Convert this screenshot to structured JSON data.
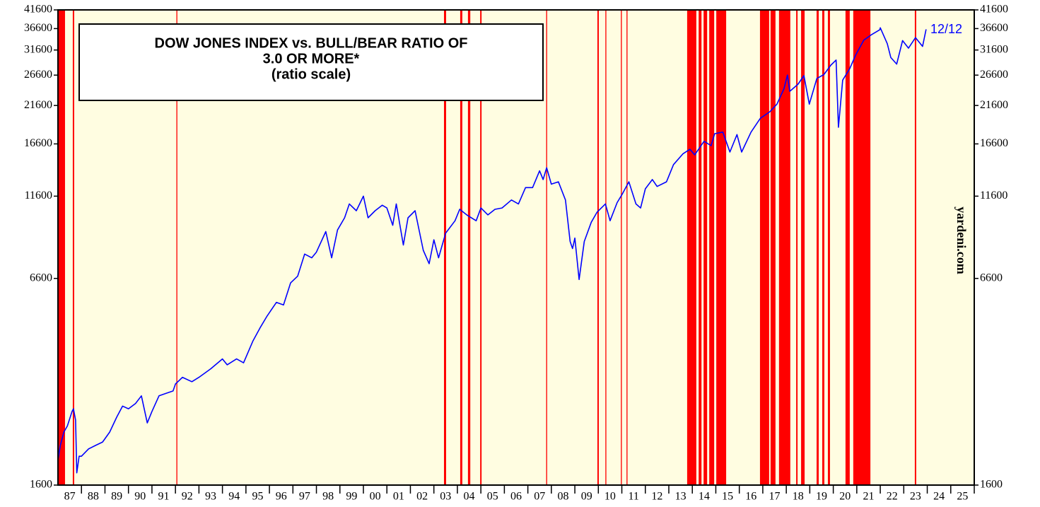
{
  "chart_data": {
    "type": "line",
    "title": [
      "DOW JONES INDEX vs. BULL/BEAR RATIO OF",
      "3.0 OR MORE*",
      "(ratio scale)"
    ],
    "end_label": "12/12",
    "source": "yardeni.com",
    "log_scale": true,
    "color": "#0000ff",
    "band_color": "#ff0000",
    "background": "#fffde1",
    "xlim": [
      1987,
      2026
    ],
    "ylim": [
      1600,
      41600
    ],
    "yticks": [
      1600,
      6600,
      11600,
      16600,
      21600,
      26600,
      31600,
      36600,
      41600
    ],
    "xticks": [
      {
        "value": 1987.5,
        "label": "87"
      },
      {
        "value": 1988.5,
        "label": "88"
      },
      {
        "value": 1989.5,
        "label": "89"
      },
      {
        "value": 1990.5,
        "label": "90"
      },
      {
        "value": 1991.5,
        "label": "91"
      },
      {
        "value": 1992.5,
        "label": "92"
      },
      {
        "value": 1993.5,
        "label": "93"
      },
      {
        "value": 1994.5,
        "label": "94"
      },
      {
        "value": 1995.5,
        "label": "95"
      },
      {
        "value": 1996.5,
        "label": "96"
      },
      {
        "value": 1997.5,
        "label": "97"
      },
      {
        "value": 1998.5,
        "label": "98"
      },
      {
        "value": 1999.5,
        "label": "99"
      },
      {
        "value": 2000.5,
        "label": "00"
      },
      {
        "value": 2001.5,
        "label": "01"
      },
      {
        "value": 2002.5,
        "label": "02"
      },
      {
        "value": 2003.5,
        "label": "03"
      },
      {
        "value": 2004.5,
        "label": "04"
      },
      {
        "value": 2005.5,
        "label": "05"
      },
      {
        "value": 2006.5,
        "label": "06"
      },
      {
        "value": 2007.5,
        "label": "07"
      },
      {
        "value": 2008.5,
        "label": "08"
      },
      {
        "value": 2009.5,
        "label": "09"
      },
      {
        "value": 2010.5,
        "label": "10"
      },
      {
        "value": 2011.5,
        "label": "11"
      },
      {
        "value": 2012.5,
        "label": "12"
      },
      {
        "value": 2013.5,
        "label": "13"
      },
      {
        "value": 2014.5,
        "label": "14"
      },
      {
        "value": 2015.5,
        "label": "15"
      },
      {
        "value": 2016.5,
        "label": "16"
      },
      {
        "value": 2017.5,
        "label": "17"
      },
      {
        "value": 2018.5,
        "label": "18"
      },
      {
        "value": 2019.5,
        "label": "19"
      },
      {
        "value": 2020.5,
        "label": "20"
      },
      {
        "value": 2021.5,
        "label": "21"
      },
      {
        "value": 2022.5,
        "label": "22"
      },
      {
        "value": 2023.5,
        "label": "23"
      },
      {
        "value": 2024.5,
        "label": "24"
      },
      {
        "value": 2025.5,
        "label": "25"
      }
    ],
    "shaded_periods": [
      [
        1987.0,
        1987.3
      ],
      [
        1987.63,
        1987.69
      ],
      [
        1992.04,
        1992.08
      ],
      [
        2003.43,
        2003.52
      ],
      [
        2004.12,
        2004.21
      ],
      [
        2004.45,
        2004.55
      ],
      [
        2004.97,
        2005.03
      ],
      [
        2007.78,
        2007.82
      ],
      [
        2009.96,
        2010.02
      ],
      [
        2010.3,
        2010.34
      ],
      [
        2010.96,
        2011.0
      ],
      [
        2011.2,
        2011.24
      ],
      [
        2013.78,
        2014.17
      ],
      [
        2014.27,
        2014.39
      ],
      [
        2014.48,
        2014.63
      ],
      [
        2014.72,
        2014.93
      ],
      [
        2015.02,
        2015.44
      ],
      [
        2016.88,
        2017.27
      ],
      [
        2017.33,
        2017.54
      ],
      [
        2017.69,
        2018.17
      ],
      [
        2018.42,
        2018.48
      ],
      [
        2018.63,
        2018.78
      ],
      [
        2019.29,
        2019.38
      ],
      [
        2019.53,
        2019.62
      ],
      [
        2019.77,
        2019.86
      ],
      [
        2020.52,
        2020.7
      ],
      [
        2020.85,
        2021.58
      ],
      [
        2023.47,
        2023.53
      ]
    ],
    "x": [
      1987.0,
      1987.1,
      1987.25,
      1987.4,
      1987.6,
      1987.66,
      1987.75,
      1987.8,
      1987.9,
      1988.0,
      1988.3,
      1988.6,
      1988.9,
      1989.2,
      1989.5,
      1989.75,
      1990.0,
      1990.3,
      1990.55,
      1990.8,
      1991.0,
      1991.3,
      1991.6,
      1991.9,
      1992.0,
      1992.3,
      1992.7,
      1993.0,
      1993.5,
      1994.0,
      1994.2,
      1994.6,
      1994.9,
      1995.3,
      1995.6,
      1995.9,
      1996.3,
      1996.6,
      1996.9,
      1997.2,
      1997.5,
      1997.8,
      1998.0,
      1998.4,
      1998.65,
      1998.9,
      1999.2,
      1999.4,
      1999.7,
      2000.0,
      2000.2,
      2000.5,
      2000.8,
      2001.0,
      2001.25,
      2001.4,
      2001.7,
      2001.9,
      2002.2,
      2002.55,
      2002.8,
      2003.0,
      2003.2,
      2003.5,
      2003.9,
      2004.1,
      2004.4,
      2004.8,
      2005.0,
      2005.3,
      2005.6,
      2005.9,
      2006.3,
      2006.6,
      2006.9,
      2007.2,
      2007.5,
      2007.65,
      2007.8,
      2008.0,
      2008.3,
      2008.6,
      2008.8,
      2008.9,
      2009.0,
      2009.18,
      2009.4,
      2009.7,
      2009.95,
      2010.3,
      2010.5,
      2010.8,
      2011.0,
      2011.3,
      2011.6,
      2011.8,
      2012.0,
      2012.3,
      2012.5,
      2012.9,
      2013.2,
      2013.6,
      2013.9,
      2014.1,
      2014.5,
      2014.8,
      2014.95,
      2015.3,
      2015.6,
      2015.9,
      2016.1,
      2016.5,
      2016.9,
      2017.3,
      2017.6,
      2017.9,
      2018.05,
      2018.15,
      2018.5,
      2018.75,
      2018.98,
      2019.3,
      2019.6,
      2019.9,
      2020.12,
      2020.22,
      2020.4,
      2020.7,
      2020.95,
      2021.3,
      2021.6,
      2021.98,
      2022.0,
      2022.3,
      2022.45,
      2022.7,
      2022.95,
      2023.2,
      2023.5,
      2023.8,
      2023.95
    ],
    "values": [
      1900,
      2100,
      2300,
      2400,
      2650,
      2700,
      2500,
      1740,
      1950,
      1950,
      2050,
      2100,
      2150,
      2300,
      2550,
      2750,
      2700,
      2800,
      2950,
      2450,
      2650,
      2950,
      3000,
      3050,
      3200,
      3350,
      3250,
      3350,
      3550,
      3800,
      3650,
      3800,
      3700,
      4300,
      4700,
      5100,
      5600,
      5500,
      6400,
      6700,
      7800,
      7600,
      7900,
      9100,
      7600,
      9200,
      10000,
      11000,
      10500,
      11600,
      10000,
      10500,
      10900,
      10700,
      9500,
      11000,
      8300,
      10000,
      10500,
      8000,
      7300,
      8600,
      7600,
      9000,
      9800,
      10600,
      10200,
      9800,
      10700,
      10200,
      10600,
      10700,
      11300,
      11000,
      12300,
      12300,
      13800,
      13000,
      14100,
      12600,
      12800,
      11300,
      8500,
      8100,
      8700,
      6550,
      8500,
      9700,
      10400,
      11000,
      9800,
      11100,
      11700,
      12800,
      11000,
      10700,
      12200,
      13000,
      12400,
      12800,
      14400,
      15500,
      16000,
      15400,
      16900,
      16400,
      17800,
      18000,
      15700,
      17700,
      15700,
      18000,
      19800,
      20700,
      21800,
      24200,
      26600,
      23800,
      25000,
      26500,
      21800,
      26000,
      26700,
      28500,
      29500,
      18600,
      25700,
      27800,
      30500,
      33800,
      35000,
      36300,
      36800,
      33000,
      30000,
      28700,
      33700,
      32000,
      34400,
      32400,
      36400
    ]
  }
}
